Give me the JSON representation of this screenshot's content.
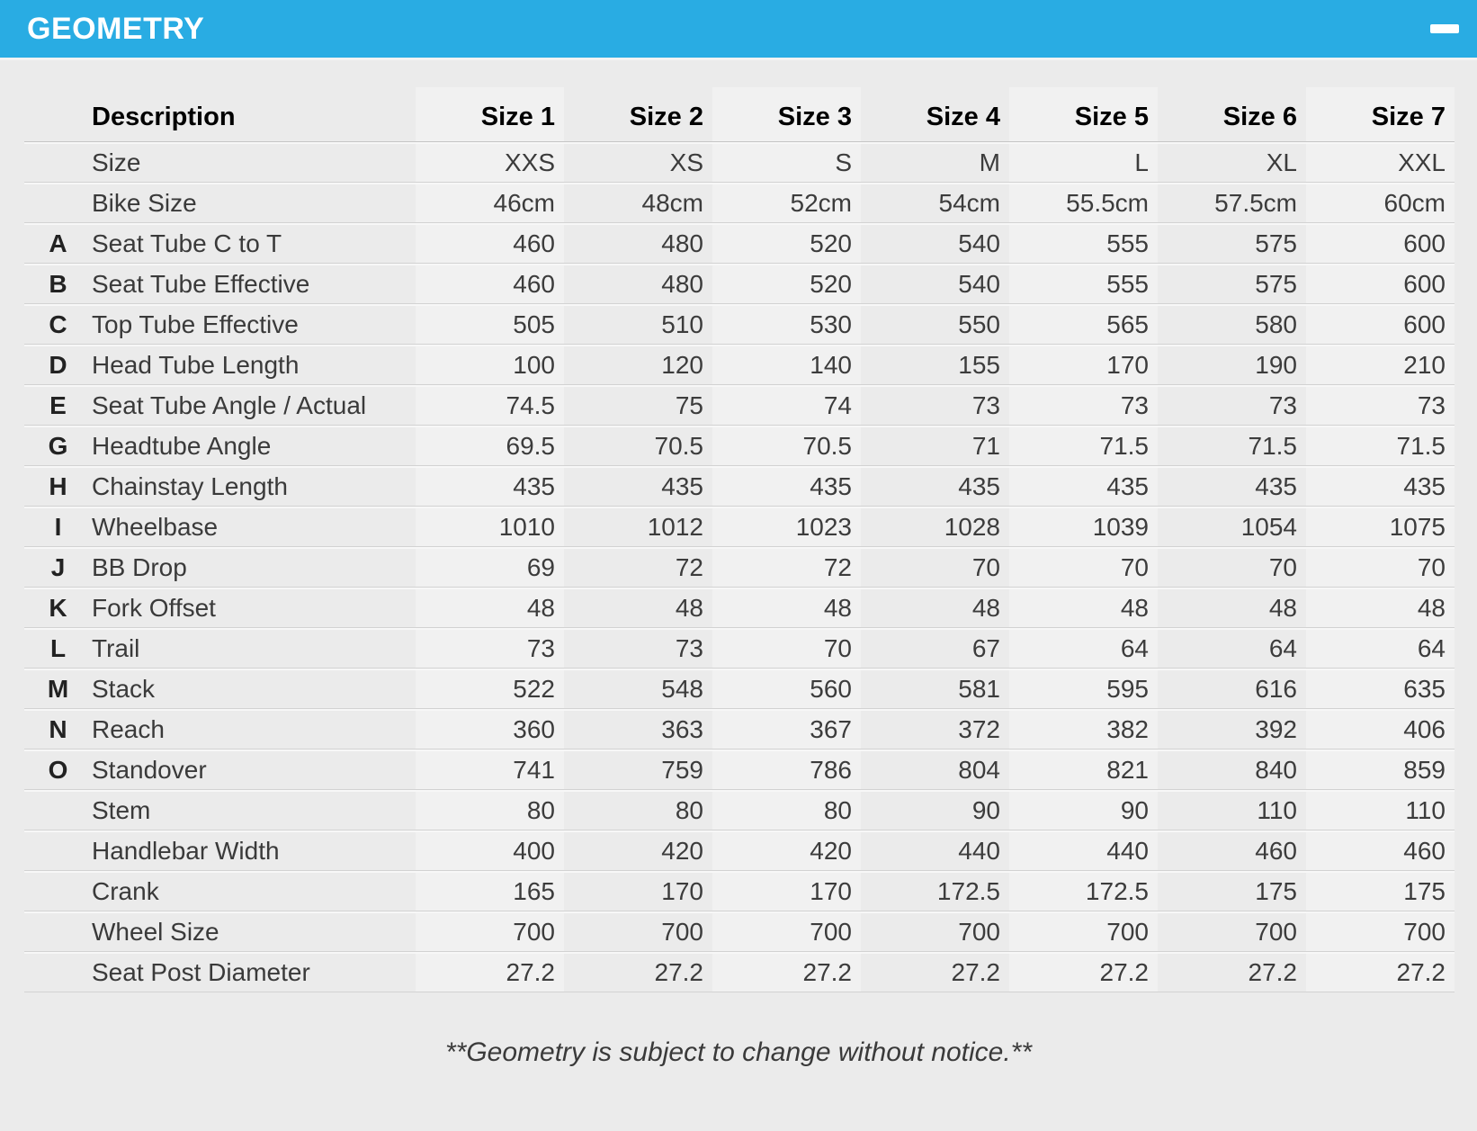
{
  "panel": {
    "title": "GEOMETRY",
    "collapse_icon": "minus-icon",
    "accent_color": "#29ace3"
  },
  "table": {
    "columns": [
      "Description",
      "Size 1",
      "Size 2",
      "Size 3",
      "Size 4",
      "Size 5",
      "Size 6",
      "Size 7"
    ],
    "rows": [
      {
        "letter": "",
        "label": "Size",
        "values": [
          "XXS",
          "XS",
          "S",
          "M",
          "L",
          "XL",
          "XXL"
        ]
      },
      {
        "letter": "",
        "label": "Bike Size",
        "values": [
          "46cm",
          "48cm",
          "52cm",
          "54cm",
          "55.5cm",
          "57.5cm",
          "60cm"
        ]
      },
      {
        "letter": "A",
        "label": "Seat Tube C to T",
        "values": [
          460,
          480,
          520,
          540,
          555,
          575,
          600
        ]
      },
      {
        "letter": "B",
        "label": "Seat Tube Effective",
        "values": [
          460,
          480,
          520,
          540,
          555,
          575,
          600
        ]
      },
      {
        "letter": "C",
        "label": "Top Tube Effective",
        "values": [
          505,
          510,
          530,
          550,
          565,
          580,
          600
        ]
      },
      {
        "letter": "D",
        "label": "Head Tube Length",
        "values": [
          100,
          120,
          140,
          155,
          170,
          190,
          210
        ]
      },
      {
        "letter": "E",
        "label": "Seat Tube Angle / Actual",
        "values": [
          74.5,
          75,
          74,
          73,
          73,
          73,
          73
        ]
      },
      {
        "letter": "G",
        "label": "Headtube Angle",
        "values": [
          69.5,
          70.5,
          70.5,
          71,
          71.5,
          71.5,
          71.5
        ]
      },
      {
        "letter": "H",
        "label": "Chainstay Length",
        "values": [
          435,
          435,
          435,
          435,
          435,
          435,
          435
        ]
      },
      {
        "letter": "I",
        "label": "Wheelbase",
        "values": [
          1010,
          1012,
          1023,
          1028,
          1039,
          1054,
          1075
        ]
      },
      {
        "letter": "J",
        "label": "BB Drop",
        "values": [
          69,
          72,
          72,
          70,
          70,
          70,
          70
        ]
      },
      {
        "letter": "K",
        "label": "Fork Offset",
        "values": [
          48,
          48,
          48,
          48,
          48,
          48,
          48
        ]
      },
      {
        "letter": "L",
        "label": "Trail",
        "values": [
          73,
          73,
          70,
          67,
          64,
          64,
          64
        ]
      },
      {
        "letter": "M",
        "label": "Stack",
        "values": [
          522,
          548,
          560,
          581,
          595,
          616,
          635
        ]
      },
      {
        "letter": "N",
        "label": "Reach",
        "values": [
          360,
          363,
          367,
          372,
          382,
          392,
          406
        ]
      },
      {
        "letter": "O",
        "label": "Standover",
        "values": [
          741,
          759,
          786,
          804,
          821,
          840,
          859
        ]
      },
      {
        "letter": "",
        "label": "Stem",
        "values": [
          80,
          80,
          80,
          90,
          90,
          110,
          110
        ]
      },
      {
        "letter": "",
        "label": "Handlebar Width",
        "values": [
          400,
          420,
          420,
          440,
          440,
          460,
          460
        ]
      },
      {
        "letter": "",
        "label": "Crank",
        "values": [
          165,
          170,
          170,
          172.5,
          172.5,
          175,
          175
        ]
      },
      {
        "letter": "",
        "label": "Wheel Size",
        "values": [
          700,
          700,
          700,
          700,
          700,
          700,
          700
        ]
      },
      {
        "letter": "",
        "label": "Seat Post Diameter",
        "values": [
          27.2,
          27.2,
          27.2,
          27.2,
          27.2,
          27.2,
          27.2
        ]
      }
    ]
  },
  "footer": {
    "note": "**Geometry is subject to change without notice.**"
  }
}
